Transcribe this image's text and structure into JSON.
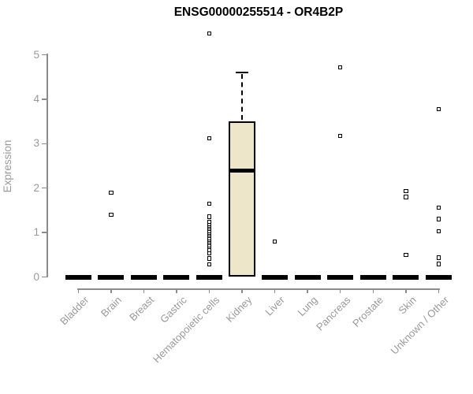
{
  "title": "ENSG00000255514 - OR4B2P",
  "chart_data": {
    "type": "box",
    "title": "ENSG00000255514 - OR4B2P",
    "xlabel": "",
    "ylabel": "Expression",
    "ylim": [
      0,
      5
    ],
    "yticks": [
      0,
      1,
      2,
      3,
      4,
      5
    ],
    "grid": "off",
    "legend": "none",
    "categories": [
      "Bladder",
      "Brain",
      "Breast",
      "Gastric",
      "Hematopoietic cells",
      "Kidney",
      "Liver",
      "Lung",
      "Pancreas",
      "Prostate",
      "Skin",
      "Unknown / Other"
    ],
    "boxes": [
      {
        "category": "Bladder",
        "q1": 0,
        "median": 0,
        "q3": 0,
        "whisker_high": 0,
        "outliers": []
      },
      {
        "category": "Brain",
        "q1": 0,
        "median": 0,
        "q3": 0,
        "whisker_high": 0,
        "outliers": [
          1.9,
          1.4
        ]
      },
      {
        "category": "Breast",
        "q1": 0,
        "median": 0,
        "q3": 0,
        "whisker_high": 0,
        "outliers": []
      },
      {
        "category": "Gastric",
        "q1": 0,
        "median": 0,
        "q3": 0,
        "whisker_high": 0,
        "outliers": []
      },
      {
        "category": "Hematopoietic cells",
        "q1": 0,
        "median": 0,
        "q3": 0,
        "whisker_high": 0,
        "outliers": [
          5.48,
          3.12,
          1.65,
          1.36,
          1.24,
          1.17,
          1.12,
          1.08,
          1.04,
          1.0,
          0.96,
          0.92,
          0.88,
          0.84,
          0.8,
          0.76,
          0.72,
          0.68,
          0.64,
          0.6,
          0.53,
          0.42,
          0.28
        ]
      },
      {
        "category": "Kidney",
        "q1": 0,
        "median": 2.4,
        "q3": 3.5,
        "whisker_high": 4.6,
        "outliers": []
      },
      {
        "category": "Liver",
        "q1": 0,
        "median": 0,
        "q3": 0,
        "whisker_high": 0,
        "outliers": [
          0.8
        ]
      },
      {
        "category": "Lung",
        "q1": 0,
        "median": 0,
        "q3": 0,
        "whisker_high": 0,
        "outliers": []
      },
      {
        "category": "Pancreas",
        "q1": 0,
        "median": 0,
        "q3": 0,
        "whisker_high": 0,
        "outliers": [
          4.72,
          3.17
        ]
      },
      {
        "category": "Prostate",
        "q1": 0,
        "median": 0,
        "q3": 0,
        "whisker_high": 0,
        "outliers": []
      },
      {
        "category": "Skin",
        "q1": 0,
        "median": 0,
        "q3": 0,
        "whisker_high": 0,
        "outliers": [
          1.93,
          1.8,
          0.5
        ]
      },
      {
        "category": "Unknown / Other",
        "q1": 0,
        "median": 0,
        "q3": 0,
        "whisker_high": 0,
        "outliers": [
          3.78,
          1.56,
          1.3,
          1.03,
          0.43,
          0.29
        ]
      }
    ],
    "colors": {
      "box_fill": "#EDE6C8",
      "box_border": "#000000",
      "median": "#000000",
      "outlier": "#000000",
      "axis": "#8C8C8C",
      "tick_label": "#999999",
      "title": "#000000",
      "background": "#FFFFFF"
    }
  }
}
